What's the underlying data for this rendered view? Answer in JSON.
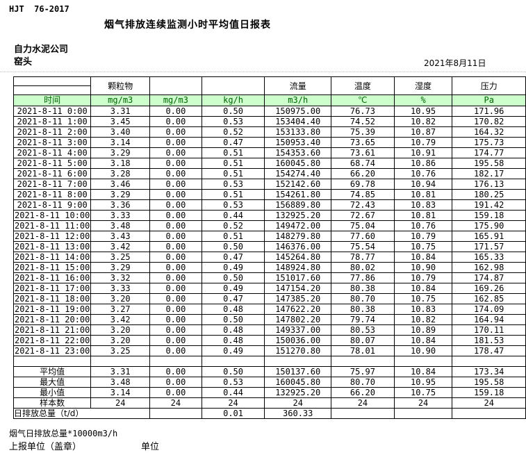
{
  "header": {
    "doc_code": "HJT  76-2017",
    "title": "烟气排放连续监测小时平均值日报表",
    "company": "自力水泥公司",
    "station": "窑头",
    "date": "2021年8月11日"
  },
  "table": {
    "group_headers": [
      "颗粒物",
      "",
      "",
      "流量",
      "温度",
      "湿度",
      "压力"
    ],
    "unit_row": {
      "label": "时间",
      "units": [
        "mg/m3",
        "mg/m3",
        "kg/h",
        "m3/h",
        "℃",
        "%",
        "Pa"
      ]
    },
    "rows": [
      {
        "time": "2021-8-11 0:00",
        "values": [
          "3.31",
          "0.00",
          "0.50",
          "150975.00",
          "76.73",
          "10.95",
          "171.96"
        ]
      },
      {
        "time": "2021-8-11 1:00",
        "values": [
          "3.45",
          "0.00",
          "0.53",
          "153404.40",
          "74.52",
          "10.82",
          "170.82"
        ]
      },
      {
        "time": "2021-8-11 2:00",
        "values": [
          "3.40",
          "0.00",
          "0.52",
          "153133.80",
          "75.39",
          "10.87",
          "164.32"
        ]
      },
      {
        "time": "2021-8-11 3:00",
        "values": [
          "3.14",
          "0.00",
          "0.47",
          "150953.40",
          "73.65",
          "10.79",
          "175.73"
        ]
      },
      {
        "time": "2021-8-11 4:00",
        "values": [
          "3.29",
          "0.00",
          "0.51",
          "154353.60",
          "73.61",
          "10.91",
          "174.77"
        ]
      },
      {
        "time": "2021-8-11 5:00",
        "values": [
          "3.18",
          "0.00",
          "0.51",
          "160045.80",
          "68.74",
          "10.86",
          "195.58"
        ]
      },
      {
        "time": "2021-8-11 6:00",
        "values": [
          "3.28",
          "0.00",
          "0.51",
          "154274.40",
          "66.20",
          "10.76",
          "182.17"
        ]
      },
      {
        "time": "2021-8-11 7:00",
        "values": [
          "3.46",
          "0.00",
          "0.53",
          "152142.60",
          "69.78",
          "10.94",
          "176.13"
        ]
      },
      {
        "time": "2021-8-11 8:00",
        "values": [
          "3.29",
          "0.00",
          "0.51",
          "154261.80",
          "74.85",
          "10.81",
          "180.25"
        ]
      },
      {
        "time": "2021-8-11 9:00",
        "values": [
          "3.36",
          "0.00",
          "0.53",
          "156889.80",
          "72.43",
          "10.83",
          "191.42"
        ]
      },
      {
        "time": "2021-8-11 10:00",
        "values": [
          "3.33",
          "0.00",
          "0.44",
          "132925.20",
          "72.67",
          "10.81",
          "159.18"
        ]
      },
      {
        "time": "2021-8-11 11:00",
        "values": [
          "3.48",
          "0.00",
          "0.52",
          "149472.00",
          "75.04",
          "10.76",
          "175.90"
        ]
      },
      {
        "time": "2021-8-11 12:00",
        "values": [
          "3.43",
          "0.00",
          "0.51",
          "148279.80",
          "77.60",
          "10.79",
          "165.91"
        ]
      },
      {
        "time": "2021-8-11 13:00",
        "values": [
          "3.42",
          "0.00",
          "0.50",
          "146376.00",
          "75.54",
          "10.75",
          "171.57"
        ]
      },
      {
        "time": "2021-8-11 14:00",
        "values": [
          "3.25",
          "0.00",
          "0.47",
          "145264.80",
          "78.77",
          "10.84",
          "165.33"
        ]
      },
      {
        "time": "2021-8-11 15:00",
        "values": [
          "3.29",
          "0.00",
          "0.49",
          "148924.80",
          "80.02",
          "10.90",
          "162.98"
        ]
      },
      {
        "time": "2021-8-11 16:00",
        "values": [
          "3.32",
          "0.00",
          "0.50",
          "151017.60",
          "77.86",
          "10.79",
          "174.87"
        ]
      },
      {
        "time": "2021-8-11 17:00",
        "values": [
          "3.33",
          "0.00",
          "0.49",
          "147154.20",
          "80.38",
          "10.84",
          "169.26"
        ]
      },
      {
        "time": "2021-8-11 18:00",
        "values": [
          "3.20",
          "0.00",
          "0.47",
          "147385.20",
          "80.70",
          "10.75",
          "162.85"
        ]
      },
      {
        "time": "2021-8-11 19:00",
        "values": [
          "3.27",
          "0.00",
          "0.48",
          "147622.20",
          "80.38",
          "10.83",
          "174.09"
        ]
      },
      {
        "time": "2021-8-11 20:00",
        "values": [
          "3.42",
          "0.00",
          "0.50",
          "147802.20",
          "79.74",
          "10.82",
          "164.94"
        ]
      },
      {
        "time": "2021-8-11 21:00",
        "values": [
          "3.20",
          "0.00",
          "0.48",
          "149337.00",
          "80.53",
          "10.89",
          "170.11"
        ]
      },
      {
        "time": "2021-8-11 22:00",
        "values": [
          "3.20",
          "0.00",
          "0.48",
          "150036.00",
          "80.07",
          "10.84",
          "181.53"
        ]
      },
      {
        "time": "2021-8-11 23:00",
        "values": [
          "3.25",
          "0.00",
          "0.49",
          "151270.80",
          "78.01",
          "10.90",
          "178.47"
        ]
      }
    ],
    "summary": [
      {
        "label": "平均值",
        "values": [
          "3.31",
          "0.00",
          "0.50",
          "150137.60",
          "75.97",
          "10.84",
          "173.34"
        ]
      },
      {
        "label": "最大值",
        "values": [
          "3.48",
          "0.00",
          "0.53",
          "160045.80",
          "80.70",
          "10.95",
          "195.58"
        ]
      },
      {
        "label": "最小值",
        "values": [
          "3.14",
          "0.00",
          "0.44",
          "132925.20",
          "66.20",
          "10.75",
          "159.18"
        ]
      },
      {
        "label": "样本数",
        "values": [
          "24",
          "24",
          "24",
          "24",
          "24",
          "24",
          "24"
        ]
      }
    ],
    "total_row": {
      "label": "日排放总量（t/d）",
      "values": [
        "",
        "0.01",
        "360.33",
        "",
        "",
        ""
      ]
    }
  },
  "footer": {
    "note": "烟气日排放总量*10000m3/h",
    "report_unit_label": "上报单位（盖章）",
    "unit_label": "单位"
  },
  "colors": {
    "unit_row_bg": "#ccffcc",
    "unit_row_text": "#006600",
    "border": "#000000"
  }
}
